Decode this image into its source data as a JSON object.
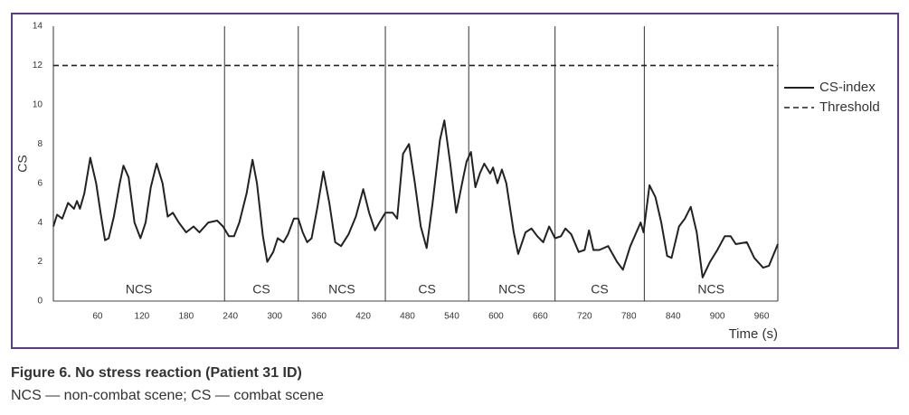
{
  "chart_data": {
    "type": "line",
    "caption_title": "Figure 6. No stress reaction (Patient 31 ID)",
    "caption_subtitle": "NCS — non-combat scene; CS — combat scene",
    "ylabel": "CS",
    "xlabel": "Time (s)",
    "xlim": [
      0,
      982
    ],
    "ylim": [
      0,
      14
    ],
    "xticks": [
      60,
      120,
      180,
      240,
      300,
      360,
      420,
      480,
      540,
      600,
      660,
      720,
      780,
      840,
      900,
      960
    ],
    "yticks": [
      0,
      2,
      4,
      6,
      8,
      10,
      12,
      14
    ],
    "legend": "right",
    "segments": [
      {
        "label": "NCS",
        "start": 0,
        "end": 232
      },
      {
        "label": "CS",
        "start": 232,
        "end": 332
      },
      {
        "label": "NCS",
        "start": 332,
        "end": 450
      },
      {
        "label": "CS",
        "start": 450,
        "end": 563
      },
      {
        "label": "NCS",
        "start": 563,
        "end": 680
      },
      {
        "label": "CS",
        "start": 680,
        "end": 801
      },
      {
        "label": "NCS",
        "start": 801,
        "end": 982
      }
    ],
    "series": [
      {
        "name": "CS-index",
        "color": "#222222",
        "dash": false,
        "x": [
          0,
          5,
          12,
          20,
          28,
          32,
          36,
          42,
          50,
          58,
          64,
          70,
          75,
          82,
          90,
          95,
          102,
          110,
          118,
          125,
          132,
          140,
          148,
          155,
          162,
          170,
          180,
          190,
          198,
          210,
          222,
          230,
          238,
          245,
          252,
          262,
          270,
          276,
          284,
          290,
          298,
          304,
          312,
          318,
          326,
          332,
          338,
          344,
          350,
          358,
          366,
          374,
          382,
          390,
          400,
          410,
          420,
          428,
          436,
          442,
          450,
          460,
          466,
          474,
          482,
          490,
          498,
          506,
          514,
          524,
          530,
          538,
          546,
          554,
          560,
          566,
          572,
          578,
          584,
          592,
          596,
          602,
          608,
          614,
          624,
          630,
          640,
          648,
          656,
          664,
          672,
          680,
          688,
          694,
          702,
          712,
          720,
          726,
          732,
          740,
          752,
          764,
          772,
          782,
          796,
          800,
          808,
          816,
          824,
          832,
          838,
          848,
          856,
          864,
          872,
          880,
          890,
          900,
          910,
          918,
          925,
          940,
          950,
          962,
          970,
          982
        ],
        "values": [
          3.8,
          4.4,
          4.2,
          5.0,
          4.7,
          5.1,
          4.7,
          5.5,
          7.3,
          6.0,
          4.5,
          3.1,
          3.2,
          4.3,
          6.0,
          6.9,
          6.3,
          4.0,
          3.2,
          4.0,
          5.8,
          7.0,
          6.0,
          4.3,
          4.5,
          4.0,
          3.5,
          3.8,
          3.5,
          4.0,
          4.1,
          3.8,
          3.3,
          3.3,
          4.0,
          5.5,
          7.2,
          6.0,
          3.3,
          2.0,
          2.5,
          3.2,
          3.0,
          3.4,
          4.2,
          4.2,
          3.5,
          3.0,
          3.2,
          4.8,
          6.6,
          5.0,
          3.0,
          2.8,
          3.4,
          4.3,
          5.7,
          4.5,
          3.6,
          4.0,
          4.5,
          4.5,
          4.2,
          7.5,
          8.0,
          6.0,
          3.8,
          2.7,
          5.0,
          8.2,
          9.2,
          7.0,
          4.5,
          6.0,
          7.1,
          7.6,
          5.8,
          6.5,
          7.0,
          6.5,
          6.8,
          6.0,
          6.7,
          6.0,
          3.5,
          2.4,
          3.5,
          3.7,
          3.3,
          3.0,
          3.8,
          3.2,
          3.3,
          3.7,
          3.4,
          2.5,
          2.6,
          3.6,
          2.6,
          2.6,
          2.8,
          2.0,
          1.6,
          2.8,
          4.0,
          3.5,
          5.9,
          5.3,
          4.0,
          2.3,
          2.2,
          3.8,
          4.2,
          4.8,
          3.5,
          1.2,
          2.0,
          2.6,
          3.3,
          3.3,
          2.9,
          3.0,
          2.2,
          1.7,
          1.8,
          2.9
        ]
      },
      {
        "name": "Threshold",
        "color": "#222222",
        "dash": true,
        "x": [
          0,
          982
        ],
        "values": [
          12,
          12
        ]
      }
    ]
  }
}
